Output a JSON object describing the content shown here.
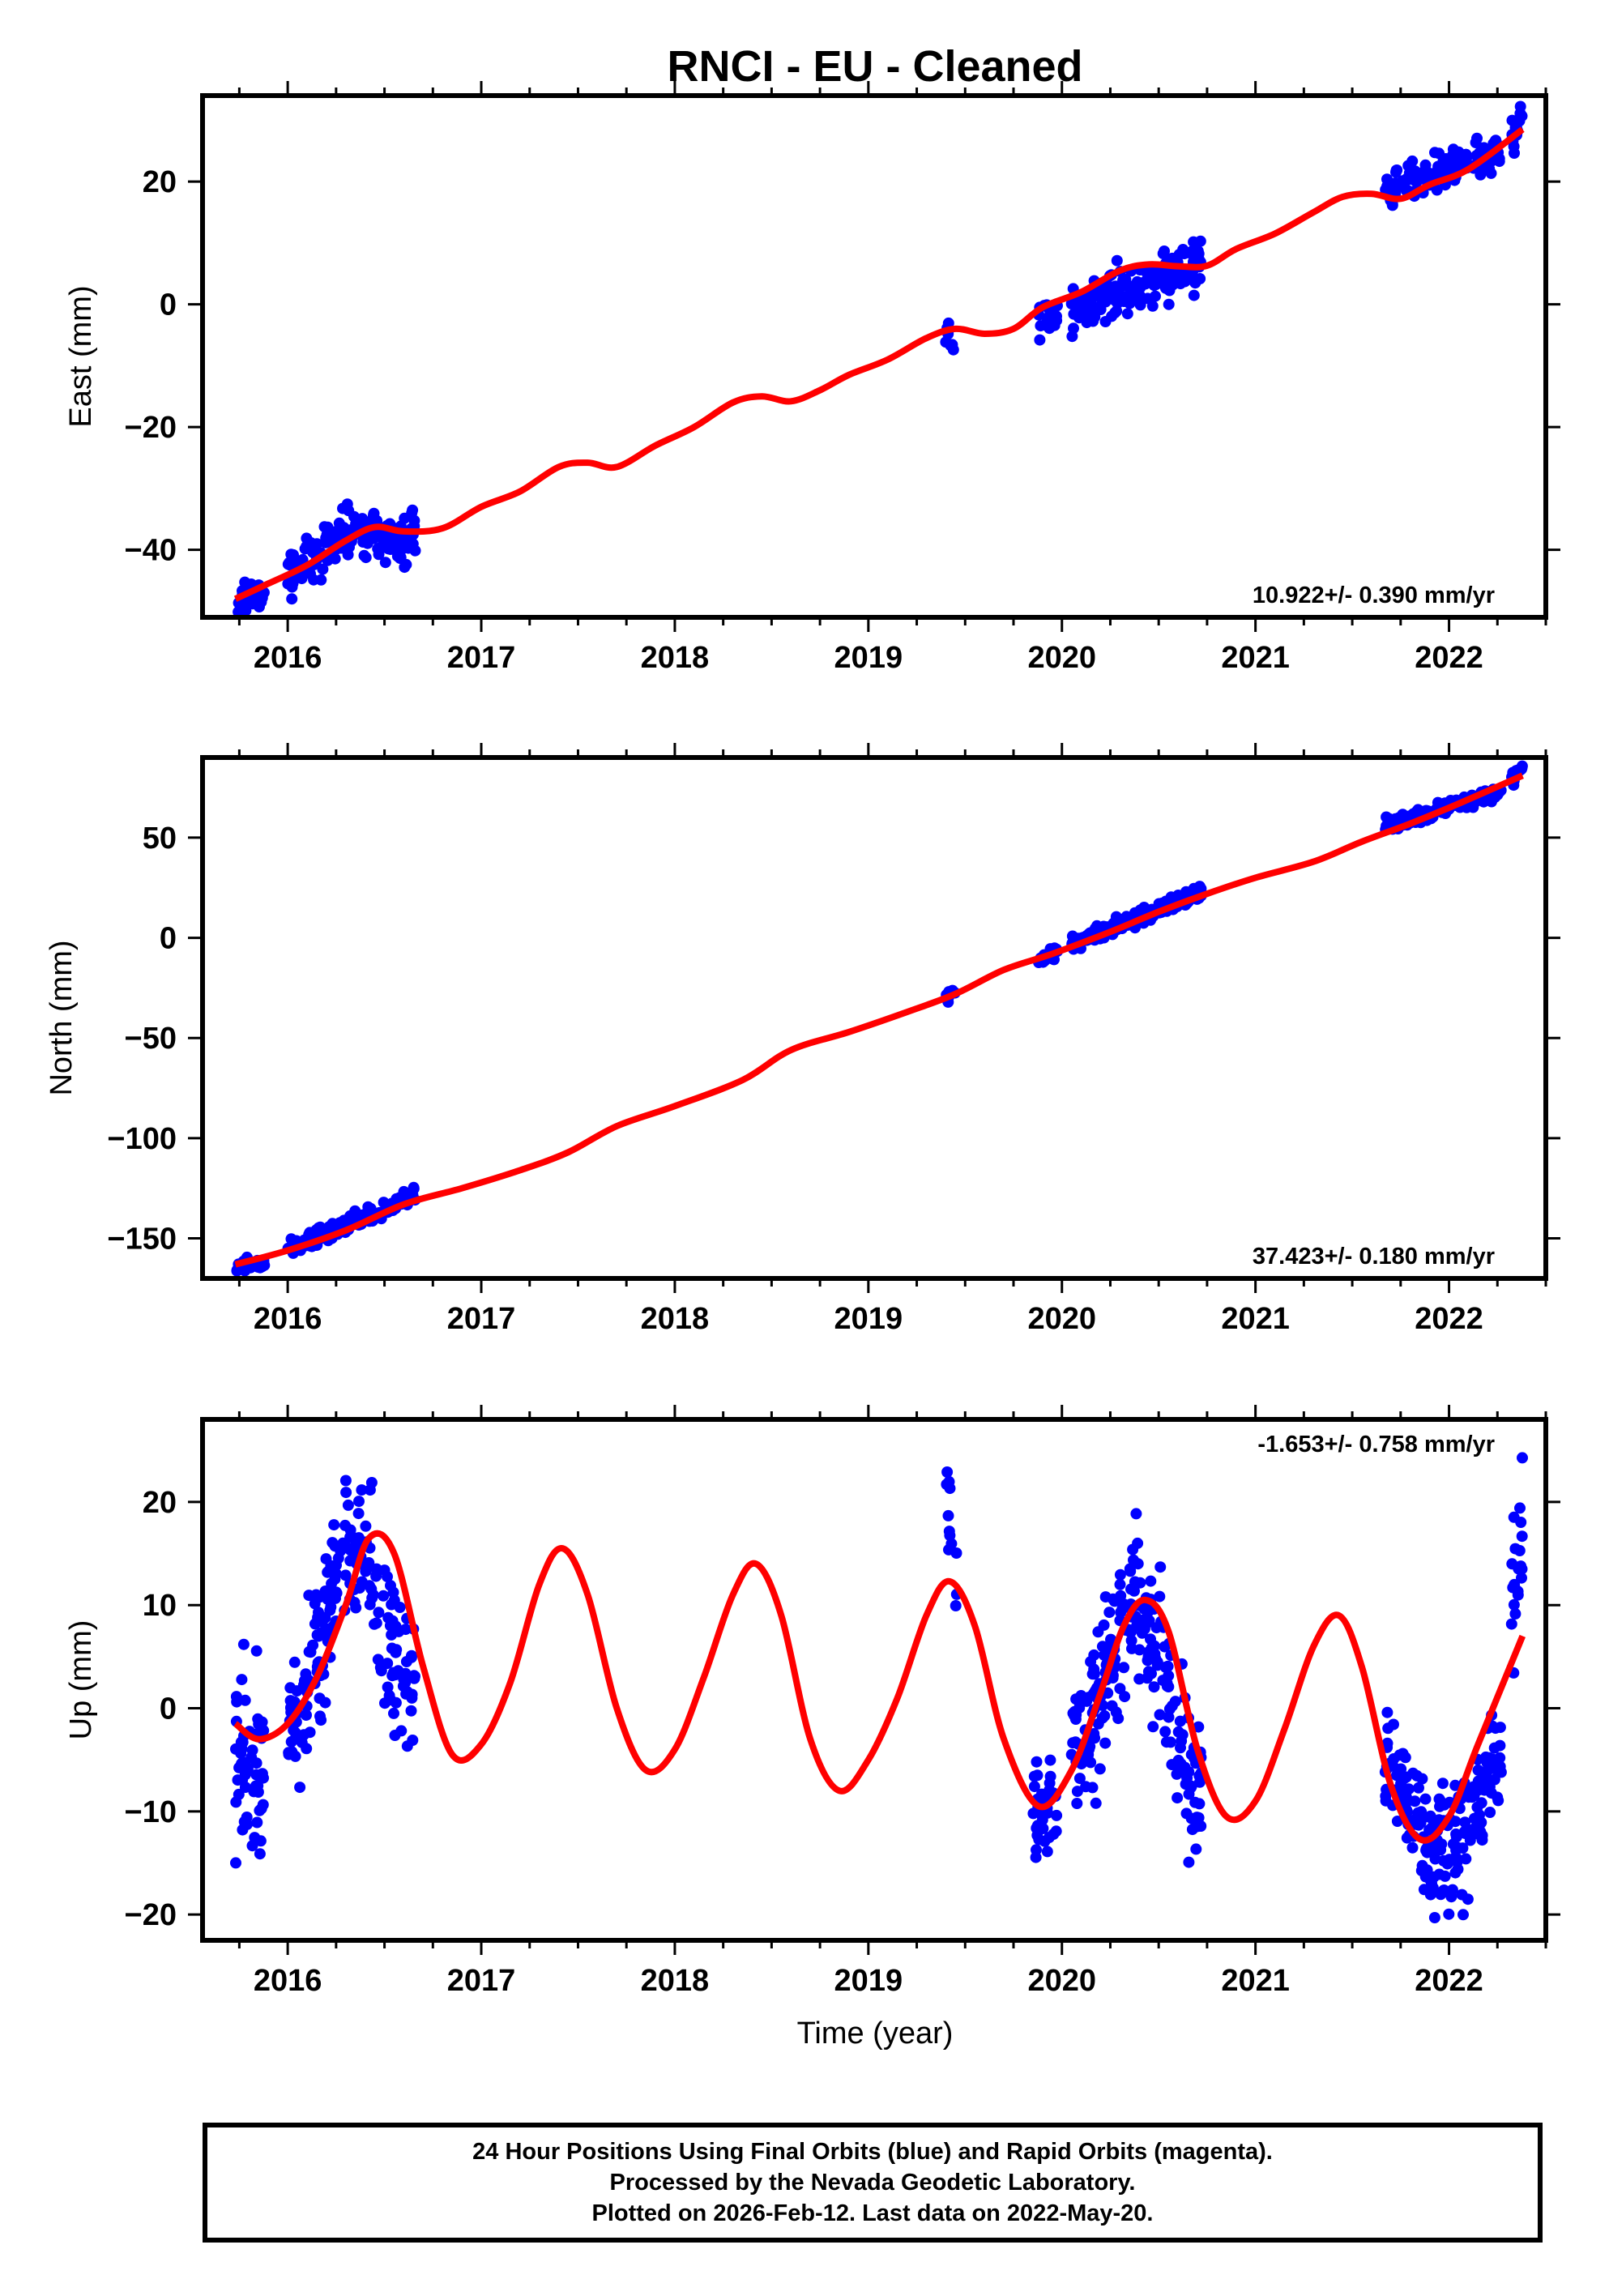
{
  "chart_data": {
    "type": "scatter",
    "title": "RNCI  - EU - Cleaned",
    "xlabel": "Time (year)",
    "x_ticks": [
      2016,
      2017,
      2018,
      2019,
      2020,
      2021,
      2022
    ],
    "xlim": [
      2015.56,
      2022.5
    ],
    "colors": {
      "points": "#0000ff",
      "fit": "#ff0000",
      "axes": "#000000"
    },
    "panels": [
      {
        "id": "east",
        "ylabel": "East (mm)",
        "ylim": [
          -51,
          34
        ],
        "y_ticks": [
          20,
          0,
          -20,
          -40
        ],
        "rate_label": "10.922+/- 0.390 mm/yr",
        "rate_position": "bottom-right",
        "point_clusters": [
          {
            "t0": 2015.73,
            "t1": 2015.88,
            "n": 40,
            "level0": -48.5,
            "level1": -47.0,
            "spread": 1.2
          },
          {
            "t0": 2016.0,
            "t1": 2016.66,
            "n": 170,
            "level0": -44.0,
            "level1": -38.0,
            "spread": 2.0,
            "bump": 4.0
          },
          {
            "t0": 2019.4,
            "t1": 2019.45,
            "n": 8,
            "level0": -4.5,
            "level1": -7.0,
            "spread": 1.0
          },
          {
            "t0": 2019.88,
            "t1": 2019.98,
            "n": 25,
            "level0": -2.5,
            "level1": -1.0,
            "spread": 1.5
          },
          {
            "t0": 2020.05,
            "t1": 2020.72,
            "n": 180,
            "level0": -1.0,
            "level1": 7.0,
            "spread": 2.0
          },
          {
            "t0": 2021.67,
            "t1": 2022.27,
            "n": 140,
            "level0": 18.0,
            "level1": 25.0,
            "spread": 1.5
          },
          {
            "t0": 2022.32,
            "t1": 2022.38,
            "n": 15,
            "level0": 27.0,
            "level1": 32.0,
            "spread": 1.8
          }
        ],
        "fit": {
          "t": [
            2015.73,
            2015.9,
            2016.1,
            2016.3,
            2016.45,
            2016.6,
            2016.8,
            2017.0,
            2017.2,
            2017.4,
            2017.55,
            2017.7,
            2017.9,
            2018.1,
            2018.3,
            2018.45,
            2018.6,
            2018.75,
            2018.9,
            2019.1,
            2019.3,
            2019.45,
            2019.6,
            2019.75,
            2019.9,
            2020.1,
            2020.3,
            2020.45,
            2020.6,
            2020.75,
            2020.9,
            2021.1,
            2021.3,
            2021.45,
            2021.6,
            2021.75,
            2021.9,
            2022.1,
            2022.38
          ],
          "y": [
            -48.0,
            -45.5,
            -42.5,
            -38.5,
            -36.3,
            -37.0,
            -36.5,
            -33.0,
            -30.5,
            -26.5,
            -25.8,
            -26.5,
            -23.0,
            -20.0,
            -16.0,
            -15.0,
            -15.8,
            -14.0,
            -11.5,
            -9.0,
            -5.5,
            -4.0,
            -4.8,
            -4.0,
            -0.5,
            2.0,
            5.5,
            6.5,
            6.2,
            6.3,
            9.0,
            11.5,
            15.0,
            17.5,
            18.0,
            17.2,
            19.5,
            22.0,
            28.5
          ]
        }
      },
      {
        "id": "north",
        "ylabel": "North (mm)",
        "ylim": [
          -170,
          90
        ],
        "y_ticks": [
          50,
          0,
          -50,
          -100,
          -150
        ],
        "rate_label": "37.423+/- 0.180 mm/yr",
        "rate_position": "bottom-right",
        "point_clusters": [
          {
            "t0": 2015.73,
            "t1": 2015.88,
            "n": 40,
            "level0": -164.0,
            "level1": -162.0,
            "spread": 1.5
          },
          {
            "t0": 2016.0,
            "t1": 2016.66,
            "n": 170,
            "level0": -156.0,
            "level1": -128.0,
            "spread": 2.0
          },
          {
            "t0": 2019.4,
            "t1": 2019.45,
            "n": 8,
            "level0": -30.0,
            "level1": -27.0,
            "spread": 1.5
          },
          {
            "t0": 2019.88,
            "t1": 2019.98,
            "n": 25,
            "level0": -11.0,
            "level1": -7.0,
            "spread": 1.5
          },
          {
            "t0": 2020.05,
            "t1": 2020.72,
            "n": 180,
            "level0": -3.0,
            "level1": 23.0,
            "spread": 2.0
          },
          {
            "t0": 2021.67,
            "t1": 2022.27,
            "n": 140,
            "level0": 56.0,
            "level1": 73.0,
            "spread": 1.8
          },
          {
            "t0": 2022.32,
            "t1": 2022.38,
            "n": 15,
            "level0": 79.0,
            "level1": 84.0,
            "spread": 1.5
          }
        ],
        "fit": {
          "t": [
            2015.73,
            2016.0,
            2016.3,
            2016.6,
            2016.9,
            2017.2,
            2017.45,
            2017.7,
            2018.0,
            2018.35,
            2018.6,
            2018.9,
            2019.2,
            2019.45,
            2019.7,
            2019.95,
            2020.25,
            2020.5,
            2020.75,
            2021.0,
            2021.3,
            2021.55,
            2021.8,
            2022.05,
            2022.38
          ],
          "y": [
            -163.0,
            -156.0,
            -146.0,
            -133.0,
            -125.0,
            -116.0,
            -107.0,
            -94.0,
            -84.0,
            -71.0,
            -56.0,
            -47.0,
            -37.0,
            -28.0,
            -16.0,
            -8.0,
            3.0,
            13.0,
            22.0,
            30.0,
            38.0,
            48.0,
            57.0,
            67.0,
            81.0
          ]
        }
      },
      {
        "id": "up",
        "ylabel": "Up (mm)",
        "ylim": [
          -22.5,
          28
        ],
        "y_ticks": [
          20,
          10,
          0,
          -10,
          -20
        ],
        "rate_label": "-1.653+/- 0.758 mm/yr",
        "rate_position": "top-right",
        "point_clusters": [
          {
            "t0": 2015.73,
            "t1": 2015.88,
            "n": 60,
            "level0": -5.5,
            "level1": -5.5,
            "spread": 4.0
          },
          {
            "t0": 2016.0,
            "t1": 2016.66,
            "n": 200,
            "level0": -3.0,
            "level1": 2.0,
            "spread": 3.5,
            "bump": 17.0
          },
          {
            "t0": 2019.4,
            "t1": 2019.46,
            "n": 12,
            "level0": 20.0,
            "level1": 14.0,
            "spread": 3.0
          },
          {
            "t0": 2019.85,
            "t1": 2019.98,
            "n": 45,
            "level0": -10.0,
            "level1": -10.0,
            "spread": 2.5
          },
          {
            "t0": 2020.05,
            "t1": 2020.72,
            "n": 220,
            "level0": -4.0,
            "level1": -8.0,
            "spread": 3.5,
            "bump": 15.0
          },
          {
            "t0": 2021.67,
            "t1": 2022.27,
            "n": 200,
            "level0": -3.0,
            "level1": -3.0,
            "spread": 3.0,
            "dip": -11.0
          },
          {
            "t0": 2022.32,
            "t1": 2022.38,
            "n": 22,
            "level0": 12.0,
            "level1": 14.0,
            "spread": 4.5
          }
        ],
        "fit": {
          "t": [
            2015.73,
            2015.85,
            2016.0,
            2016.15,
            2016.3,
            2016.42,
            2016.55,
            2016.7,
            2016.85,
            2017.0,
            2017.15,
            2017.3,
            2017.42,
            2017.55,
            2017.7,
            2017.85,
            2018.0,
            2018.15,
            2018.3,
            2018.42,
            2018.55,
            2018.7,
            2018.85,
            2019.0,
            2019.15,
            2019.3,
            2019.42,
            2019.55,
            2019.7,
            2019.88,
            2020.05,
            2020.2,
            2020.32,
            2020.43,
            2020.55,
            2020.7,
            2020.85,
            2021.0,
            2021.15,
            2021.3,
            2021.43,
            2021.55,
            2021.7,
            2021.85,
            2022.0,
            2022.15,
            2022.38
          ],
          "y": [
            -1.5,
            -3.0,
            -1.5,
            3.0,
            10.0,
            16.5,
            15.0,
            4.0,
            -4.5,
            -3.5,
            2.5,
            12.0,
            15.5,
            11.0,
            0.0,
            -6.0,
            -4.0,
            3.0,
            11.0,
            14.0,
            9.0,
            -3.0,
            -8.0,
            -5.0,
            1.0,
            9.0,
            12.3,
            8.0,
            -3.0,
            -9.5,
            -6.0,
            1.5,
            8.0,
            10.5,
            7.5,
            -4.0,
            -10.5,
            -9.0,
            -2.0,
            6.0,
            9.0,
            4.0,
            -7.5,
            -12.7,
            -10.5,
            -3.5,
            7.0
          ]
        }
      }
    ]
  },
  "caption": {
    "lines": [
      "24 Hour Positions Using Final Orbits (blue) and Rapid Orbits (magenta).",
      "Processed by the Nevada Geodetic Laboratory.",
      "Plotted on 2026-Feb-12. Last data on 2022-May-20."
    ]
  }
}
